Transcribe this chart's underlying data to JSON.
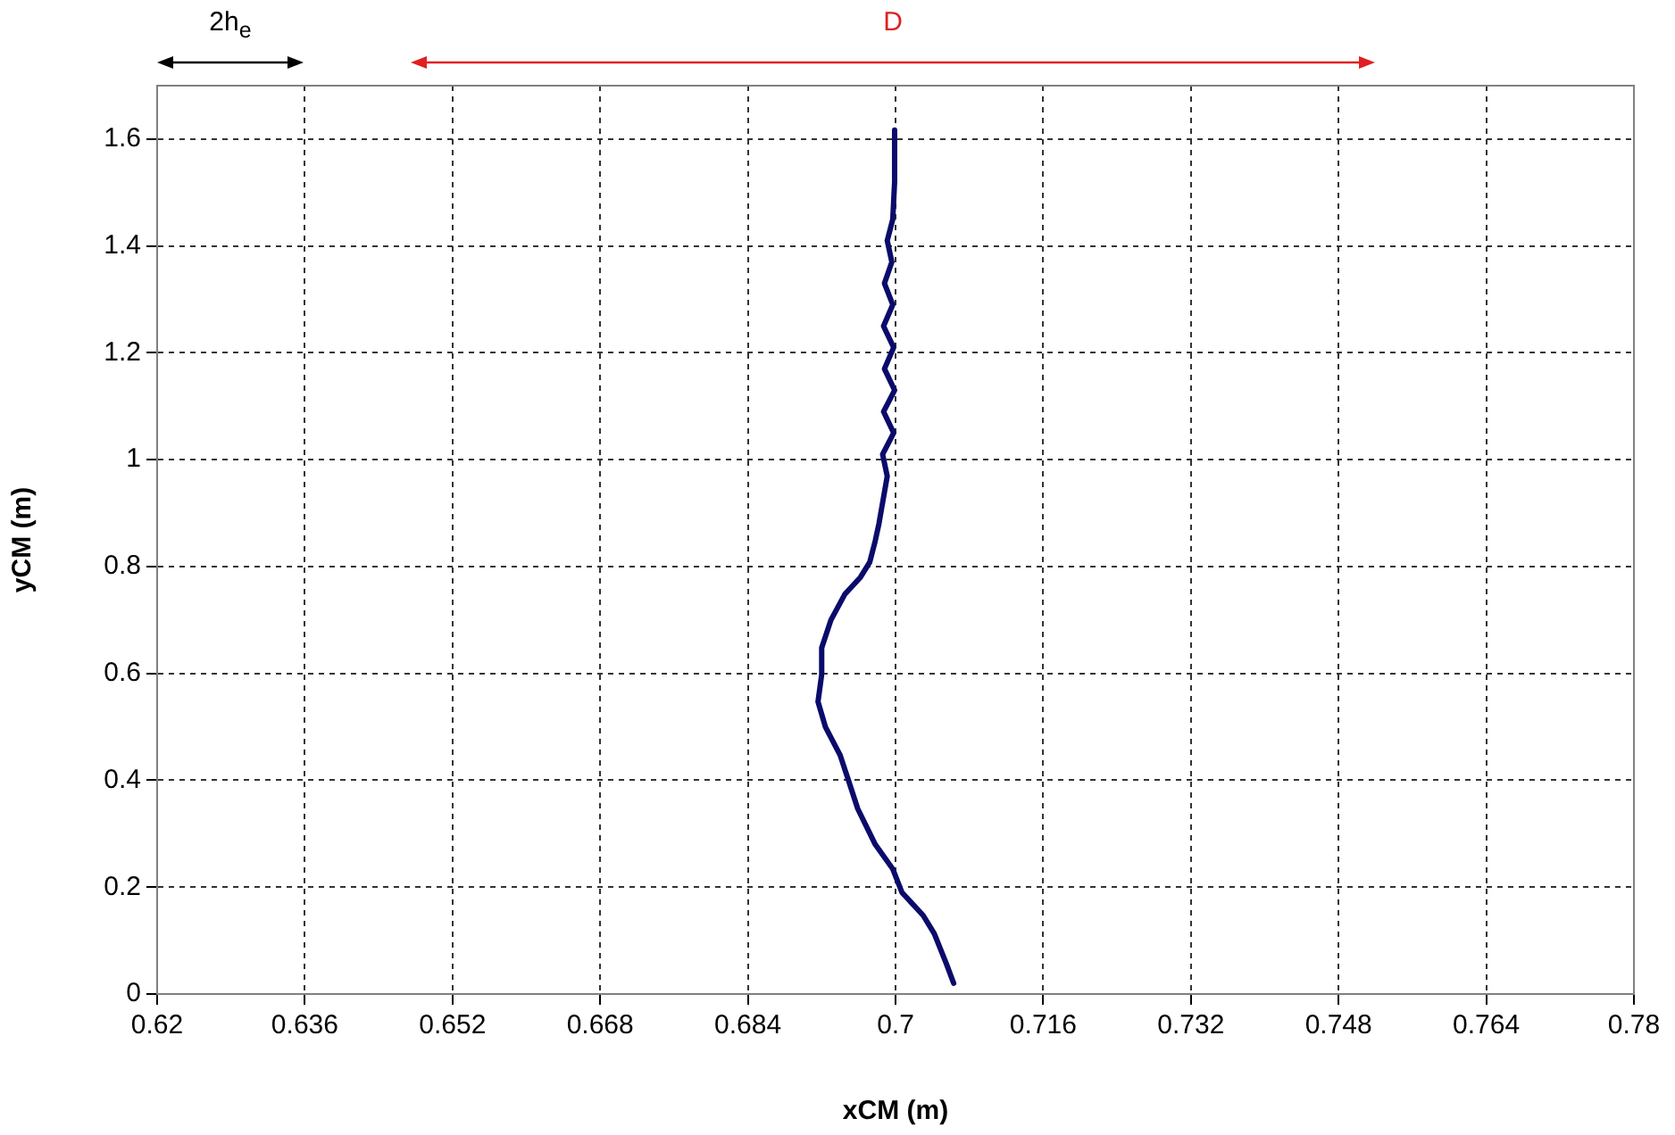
{
  "chart_data": {
    "type": "line",
    "xlabel": "xCM (m)",
    "ylabel": "yCM (m)",
    "series": [
      {
        "color": "#0b0b6b",
        "x": [
          0.7063,
          0.7055,
          0.7042,
          0.703,
          0.7007,
          0.6997,
          0.6978,
          0.6959,
          0.6949,
          0.694,
          0.6924,
          0.6916,
          0.692,
          0.692,
          0.693,
          0.6945,
          0.6962,
          0.6972,
          0.6978,
          0.6982,
          0.6991,
          0.6986,
          0.6998,
          0.6987,
          0.6999,
          0.6988,
          0.6998,
          0.6987,
          0.6997,
          0.6988,
          0.6996,
          0.6991,
          0.6997,
          0.6999,
          0.6999
        ],
        "values": [
          0.02,
          0.057,
          0.113,
          0.147,
          0.19,
          0.234,
          0.28,
          0.347,
          0.4,
          0.447,
          0.5,
          0.547,
          0.598,
          0.648,
          0.7,
          0.748,
          0.78,
          0.808,
          0.848,
          0.88,
          0.969,
          1.01,
          1.05,
          1.09,
          1.13,
          1.17,
          1.21,
          1.25,
          1.29,
          1.33,
          1.37,
          1.41,
          1.45,
          1.52,
          1.617
        ]
      }
    ],
    "xlim": [
      0.62,
      0.78
    ],
    "xticks": [
      0.62,
      0.636,
      0.652,
      0.668,
      0.684,
      0.7,
      0.716,
      0.732,
      0.748,
      0.764,
      0.78
    ],
    "ylim": [
      0,
      1.7
    ],
    "yticks": [
      0,
      0.2,
      0.4,
      0.6,
      0.8,
      1,
      1.2,
      1.4,
      1.6
    ],
    "grid": true,
    "legend": false,
    "marker": "none",
    "line_style": "solid",
    "annotations": [
      "2h$_{e}$",
      "D"
    ]
  }
}
